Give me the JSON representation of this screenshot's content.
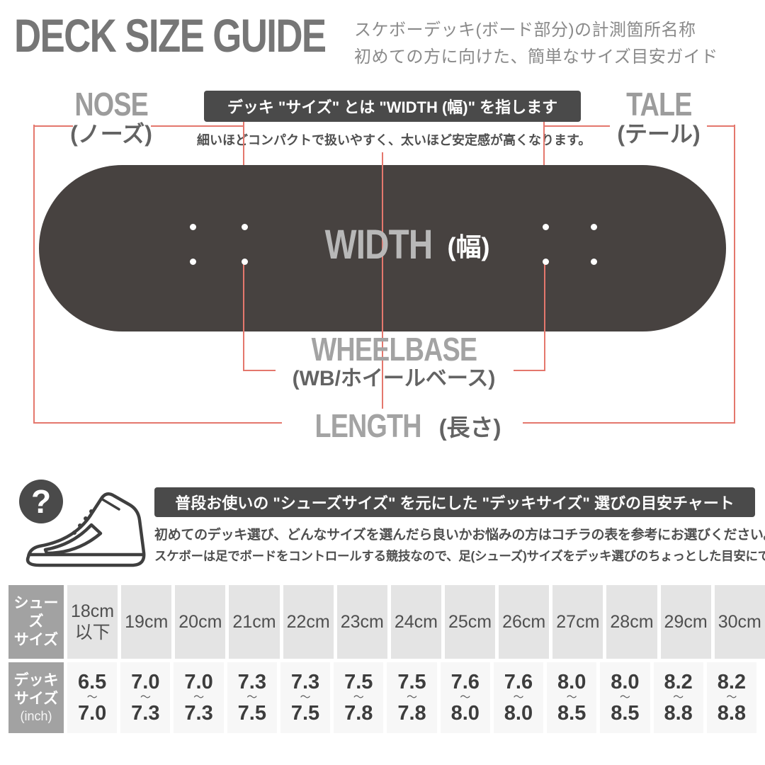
{
  "header": {
    "title": "DECK SIZE GUIDE",
    "subtitle_line1": "スケボーデッキ(ボード部分)の計測箇所名称",
    "subtitle_line2": "初めての方に向けた、簡単なサイズ目安ガイド"
  },
  "diagram": {
    "nose_label": "NOSE",
    "nose_label_jp": "(ノーズ)",
    "tale_label": "TALE",
    "tale_label_jp": "(テール)",
    "width_banner": "デッキ \"サイズ\" とは \"WIDTH (幅)\" を指します",
    "width_banner_sub": "細いほどコンパクトで扱いやすく、太いほど安定感が高くなります。",
    "width_label": "WIDTH",
    "width_label_jp": "(幅)",
    "wheelbase_label": "WHEELBASE",
    "wheelbase_label_jp": "(WB/ホイールベース)",
    "length_label": "LENGTH",
    "length_label_jp": "(長さ)",
    "deck_color": "#474240",
    "measure_line_color": "#e4776d"
  },
  "size_chart": {
    "question_mark": "?",
    "banner": "普段お使いの \"シューズサイズ\" を元にした \"デッキサイズ\" 選びの目安チャート",
    "description_line1": "初めてのデッキ選び、どんなサイズを選んだら良いかお悩みの方はコチラの表を参考にお選びください。",
    "description_line2": "スケボーは足でボードをコントロールする競技なので、足(シューズ)サイズをデッキ選びのちょっとした目安にできます。",
    "table": {
      "shoe_row_label_line1": "シューズ",
      "shoe_row_label_line2": "サイズ",
      "deck_row_label_line1": "デッキ",
      "deck_row_label_line2": "サイズ",
      "deck_row_label_line3": "(inch)",
      "tilde": "〜",
      "shoe_sizes": [
        "18cm以下",
        "19cm",
        "20cm",
        "21cm",
        "22cm",
        "23cm",
        "24cm",
        "25cm",
        "26cm",
        "27cm",
        "28cm",
        "29cm",
        "30cm"
      ],
      "deck_sizes": [
        {
          "min": "6.5",
          "max": "7.0"
        },
        {
          "min": "7.0",
          "max": "7.3"
        },
        {
          "min": "7.0",
          "max": "7.3"
        },
        {
          "min": "7.3",
          "max": "7.5"
        },
        {
          "min": "7.3",
          "max": "7.5"
        },
        {
          "min": "7.5",
          "max": "7.8"
        },
        {
          "min": "7.5",
          "max": "7.8"
        },
        {
          "min": "7.6",
          "max": "8.0"
        },
        {
          "min": "7.6",
          "max": "8.0"
        },
        {
          "min": "8.0",
          "max": "8.5"
        },
        {
          "min": "8.0",
          "max": "8.5"
        },
        {
          "min": "8.2",
          "max": "8.8"
        },
        {
          "min": "8.2",
          "max": "8.8"
        }
      ]
    }
  }
}
